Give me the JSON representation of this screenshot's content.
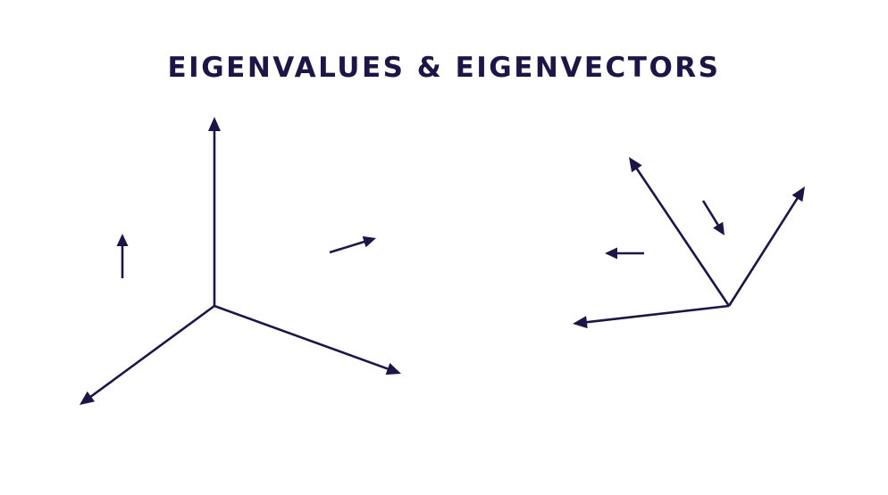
{
  "title": "EIGENVALUES & EIGENVECTORS",
  "colors": {
    "ink": "#1b1646",
    "background": "#ffffff"
  }
}
